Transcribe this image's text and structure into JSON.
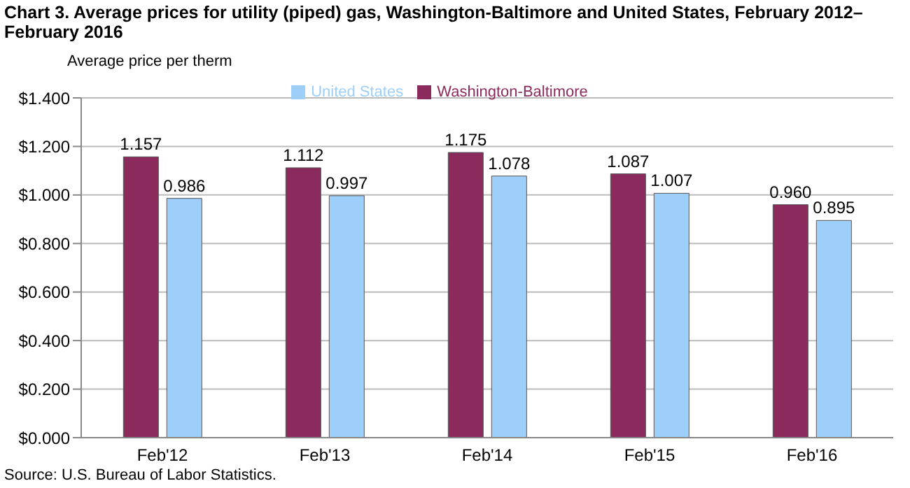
{
  "chart_data": {
    "type": "bar",
    "title": "Chart 3. Average prices for utility (piped) gas, Washington-Baltimore and United States, February 2012–February 2016",
    "ylabel": "Average price per therm",
    "categories": [
      "Feb'12",
      "Feb'13",
      "Feb'14",
      "Feb'15",
      "Feb'16"
    ],
    "series": [
      {
        "name": "Washington-Baltimore",
        "color": "#8b2a5c",
        "values": [
          1.157,
          1.112,
          1.175,
          1.087,
          0.96
        ],
        "value_labels": [
          "1.157",
          "1.112",
          "1.175",
          "1.087",
          "0.960"
        ]
      },
      {
        "name": "United States",
        "color": "#9dcffa",
        "values": [
          0.986,
          0.997,
          1.078,
          1.007,
          0.895
        ],
        "value_labels": [
          "0.986",
          "0.997",
          "1.078",
          "1.007",
          "0.895"
        ]
      }
    ],
    "ylim": [
      0,
      1.4
    ],
    "yticks": [
      {
        "value": 0,
        "label": "$0.000"
      },
      {
        "value": 0.2,
        "label": "$0.200"
      },
      {
        "value": 0.4,
        "label": "$0.400"
      },
      {
        "value": 0.6,
        "label": "$0.600"
      },
      {
        "value": 0.8,
        "label": "$0.800"
      },
      {
        "value": 1.0,
        "label": "$1.000"
      },
      {
        "value": 1.2,
        "label": "$1.200"
      },
      {
        "value": 1.4,
        "label": "$1.400"
      }
    ],
    "grid": "y",
    "legend": "top",
    "annotations": [
      "Source: U.S. Bureau of Labor Statistics."
    ]
  }
}
